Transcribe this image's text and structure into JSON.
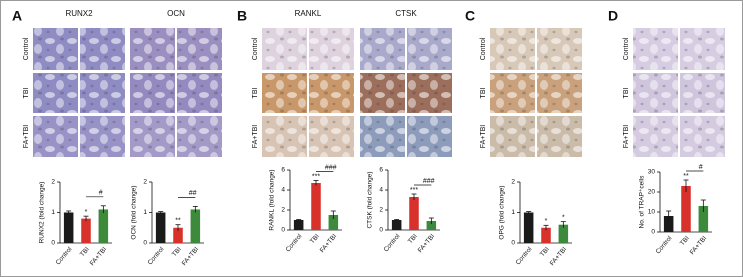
{
  "panels": [
    {
      "letter": "A",
      "columns": [
        "RUNX2",
        "OCN"
      ],
      "rows": [
        "Control",
        "TBI",
        "FA+TBI"
      ]
    },
    {
      "letter": "B",
      "columns": [
        "RANKL",
        "CTSK"
      ],
      "rows": [
        "Control",
        "TBI",
        "FA+TBI"
      ]
    },
    {
      "letter": "C",
      "rows": [
        "Control",
        "TBI",
        "FA+TBI"
      ]
    },
    {
      "letter": "D",
      "rows": [
        "Control",
        "TBI",
        "FA+TBI"
      ]
    }
  ],
  "chart_data": [
    {
      "type": "bar",
      "y_label": "RUNX2 (fold change)",
      "categories": [
        "Control",
        "TBI",
        "FA+TBI"
      ],
      "values": [
        1.0,
        0.8,
        1.1
      ],
      "errors": [
        0.05,
        0.08,
        0.12
      ],
      "colors": [
        "#1a1a1a",
        "#d8312b",
        "#3d8a3d"
      ],
      "ylim": [
        0,
        2
      ],
      "yticks": [
        0,
        1,
        2
      ],
      "sig_vs_control": [
        null,
        "*",
        null
      ],
      "sig_vs_tbi": [
        null,
        null,
        "#"
      ]
    },
    {
      "type": "bar",
      "y_label": "OCN (fold change)",
      "categories": [
        "Control",
        "TBI",
        "FA+TBI"
      ],
      "values": [
        1.0,
        0.5,
        1.1
      ],
      "errors": [
        0.03,
        0.1,
        0.1
      ],
      "colors": [
        "#1a1a1a",
        "#d8312b",
        "#3d8a3d"
      ],
      "ylim": [
        0,
        2
      ],
      "yticks": [
        0,
        1,
        2
      ],
      "sig_vs_control": [
        null,
        "**",
        null
      ],
      "sig_vs_tbi": [
        null,
        null,
        "##"
      ]
    },
    {
      "type": "bar",
      "y_label": "RANKL (fold change)",
      "categories": [
        "Control",
        "TBI",
        "FA+TBI"
      ],
      "values": [
        1.0,
        4.7,
        1.5
      ],
      "errors": [
        0.05,
        0.25,
        0.4
      ],
      "colors": [
        "#1a1a1a",
        "#d8312b",
        "#3d8a3d"
      ],
      "ylim": [
        0,
        6
      ],
      "yticks": [
        0,
        2,
        4,
        6
      ],
      "sig_vs_control": [
        null,
        "***",
        null
      ],
      "sig_vs_tbi": [
        null,
        null,
        "###"
      ]
    },
    {
      "type": "bar",
      "y_label": "CTSK (fold change)",
      "categories": [
        "Control",
        "TBI",
        "FA+TBI"
      ],
      "values": [
        1.0,
        3.3,
        0.9
      ],
      "errors": [
        0.05,
        0.3,
        0.3
      ],
      "colors": [
        "#1a1a1a",
        "#d8312b",
        "#3d8a3d"
      ],
      "ylim": [
        0,
        6
      ],
      "yticks": [
        0,
        2,
        4,
        6
      ],
      "sig_vs_control": [
        null,
        "***",
        null
      ],
      "sig_vs_tbi": [
        null,
        null,
        "###"
      ]
    },
    {
      "type": "bar",
      "y_label": "OPG (fold change)",
      "categories": [
        "Control",
        "TBI",
        "FA+TBI"
      ],
      "values": [
        1.0,
        0.5,
        0.6
      ],
      "errors": [
        0.03,
        0.08,
        0.1
      ],
      "colors": [
        "#1a1a1a",
        "#d8312b",
        "#3d8a3d"
      ],
      "ylim": [
        0,
        2
      ],
      "yticks": [
        0,
        1,
        2
      ],
      "sig_vs_control": [
        null,
        "*",
        "*"
      ],
      "sig_vs_tbi": [
        null,
        null,
        null
      ]
    },
    {
      "type": "bar",
      "y_label": "No. of TRAP⁺cells",
      "categories": [
        "Control",
        "TBI",
        "FA+TBI"
      ],
      "values": [
        8,
        23,
        13
      ],
      "errors": [
        2.5,
        3,
        3
      ],
      "colors": [
        "#1a1a1a",
        "#d8312b",
        "#3d8a3d"
      ],
      "ylim": [
        0,
        30
      ],
      "yticks": [
        0,
        10,
        20,
        30
      ],
      "sig_vs_control": [
        null,
        "**",
        null
      ],
      "sig_vs_tbi": [
        null,
        null,
        "#"
      ]
    }
  ]
}
